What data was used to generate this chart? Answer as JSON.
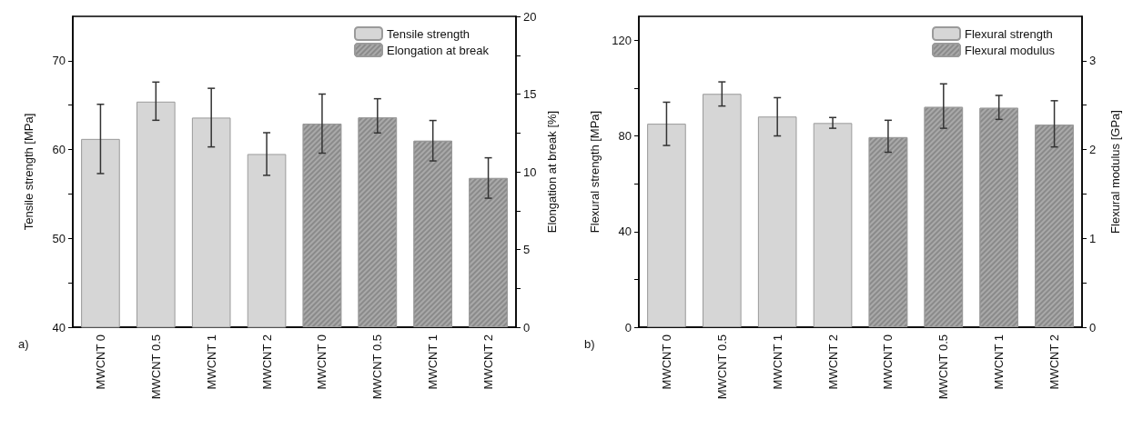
{
  "chart_data": [
    {
      "type": "bar",
      "categories": [
        "MWCNT 0",
        "MWCNT 0.5",
        "MWCNT 1",
        "MWCNT 2",
        "MWCNT 0",
        "MWCNT 0.5",
        "MWCNT 1",
        "MWCNT 2"
      ],
      "ylabel": "Tensile strength [MPa]",
      "y2label": "Elongation at break [%]",
      "ylim": [
        40,
        75
      ],
      "yticks": [
        40,
        {
          "value": 45,
          "label": null
        },
        50,
        {
          "value": 55,
          "label": null
        },
        60,
        {
          "value": 65,
          "label": null
        },
        70
      ],
      "y2lim": [
        0,
        20
      ],
      "y2ticks": [
        0,
        {
          "value": 2.5,
          "label": null
        },
        5,
        {
          "value": 7.5,
          "label": null
        },
        10,
        {
          "value": 12.5,
          "label": null
        },
        15,
        {
          "value": 17.5,
          "label": null
        },
        20
      ],
      "series": [
        {
          "name": "Tensile strength",
          "color": "#d6d6d6",
          "axis": "y",
          "values": [
            61.2,
            65.4,
            63.6,
            59.5,
            null,
            null,
            null,
            null
          ],
          "errors": [
            [
              57.3,
              65.1
            ],
            [
              63.3,
              67.6
            ],
            [
              60.3,
              66.9
            ],
            [
              57.1,
              61.9
            ],
            null,
            null,
            null,
            null
          ]
        },
        {
          "name": "Elongation at break",
          "color": "#a9a9a9",
          "axis": "y2",
          "values": [
            null,
            null,
            null,
            null,
            13.1,
            13.5,
            12.0,
            9.6
          ],
          "errors": [
            null,
            null,
            null,
            null,
            [
              11.2,
              15.0
            ],
            [
              12.5,
              14.7
            ],
            [
              10.7,
              13.3
            ],
            [
              8.3,
              10.9
            ]
          ]
        }
      ],
      "legend": "top right",
      "grid": false,
      "annotations": [
        "a)"
      ]
    },
    {
      "type": "bar",
      "categories": [
        "MWCNT 0",
        "MWCNT 0.5",
        "MWCNT 1",
        "MWCNT 2",
        "MWCNT 0",
        "MWCNT 0.5",
        "MWCNT 1",
        "MWCNT 2"
      ],
      "ylabel": "Flexural strength [MPa]",
      "y2label": "Flexural modulus [GPa]",
      "ylim": [
        0,
        130
      ],
      "yticks": [
        0,
        {
          "value": 20,
          "label": null
        },
        40,
        {
          "value": 60,
          "label": null
        },
        80,
        {
          "value": 100,
          "label": null
        },
        120
      ],
      "y2lim": [
        0,
        3.5
      ],
      "y2ticks": [
        0,
        {
          "value": 0.5,
          "label": null
        },
        1,
        {
          "value": 1.5,
          "label": null
        },
        2,
        {
          "value": 2.5,
          "label": null
        },
        3
      ],
      "series": [
        {
          "name": "Flexural strength",
          "color": "#d6d6d6",
          "axis": "y",
          "values": [
            85.1,
            97.6,
            88.1,
            85.4,
            null,
            null,
            null,
            null
          ],
          "errors": [
            [
              76.0,
              94.1
            ],
            [
              92.5,
              102.6
            ],
            [
              80.0,
              96.0
            ],
            [
              83.2,
              87.7
            ],
            null,
            null,
            null,
            null
          ]
        },
        {
          "name": "Flexural modulus",
          "color": "#a9a9a9",
          "axis": "y2",
          "values": [
            null,
            null,
            null,
            null,
            2.14,
            2.48,
            2.47,
            2.28
          ],
          "errors": [
            null,
            null,
            null,
            null,
            [
              1.97,
              2.33
            ],
            [
              2.24,
              2.74
            ],
            [
              2.34,
              2.61
            ],
            [
              2.03,
              2.55
            ]
          ]
        }
      ],
      "legend": "top right",
      "grid": false,
      "annotations": [
        "b)"
      ]
    }
  ]
}
